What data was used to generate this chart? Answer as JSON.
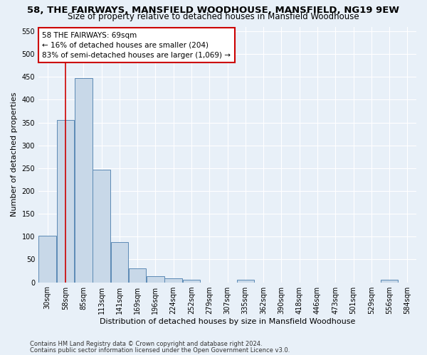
{
  "title": "58, THE FAIRWAYS, MANSFIELD WOODHOUSE, MANSFIELD, NG19 9EW",
  "subtitle": "Size of property relative to detached houses in Mansfield Woodhouse",
  "xlabel": "Distribution of detached houses by size in Mansfield Woodhouse",
  "ylabel": "Number of detached properties",
  "footnote1": "Contains HM Land Registry data © Crown copyright and database right 2024.",
  "footnote2": "Contains public sector information licensed under the Open Government Licence v3.0.",
  "bin_labels": [
    "30sqm",
    "58sqm",
    "85sqm",
    "113sqm",
    "141sqm",
    "169sqm",
    "196sqm",
    "224sqm",
    "252sqm",
    "279sqm",
    "307sqm",
    "335sqm",
    "362sqm",
    "390sqm",
    "418sqm",
    "446sqm",
    "473sqm",
    "501sqm",
    "529sqm",
    "556sqm",
    "584sqm"
  ],
  "bar_heights": [
    102,
    355,
    447,
    246,
    88,
    30,
    13,
    9,
    6,
    0,
    0,
    5,
    0,
    0,
    0,
    0,
    0,
    0,
    0,
    5,
    0
  ],
  "bar_color": "#c8d8e8",
  "bar_edge_color": "#5c8ab5",
  "reference_line_x": 1,
  "annotation_title": "58 THE FAIRWAYS: 69sqm",
  "annotation_line1": "← 16% of detached houses are smaller (204)",
  "annotation_line2": "83% of semi-detached houses are larger (1,069) →",
  "annotation_box_color": "#ffffff",
  "annotation_box_edge": "#cc0000",
  "ylim": [
    0,
    560
  ],
  "yticks": [
    0,
    50,
    100,
    150,
    200,
    250,
    300,
    350,
    400,
    450,
    500,
    550
  ],
  "background_color": "#e8f0f8",
  "plot_bg_color": "#e8f0f8",
  "grid_color": "#ffffff",
  "title_fontsize": 9.5,
  "subtitle_fontsize": 8.5,
  "axis_label_fontsize": 8,
  "tick_fontsize": 7,
  "annotation_fontsize": 7.5,
  "footnote_fontsize": 6
}
